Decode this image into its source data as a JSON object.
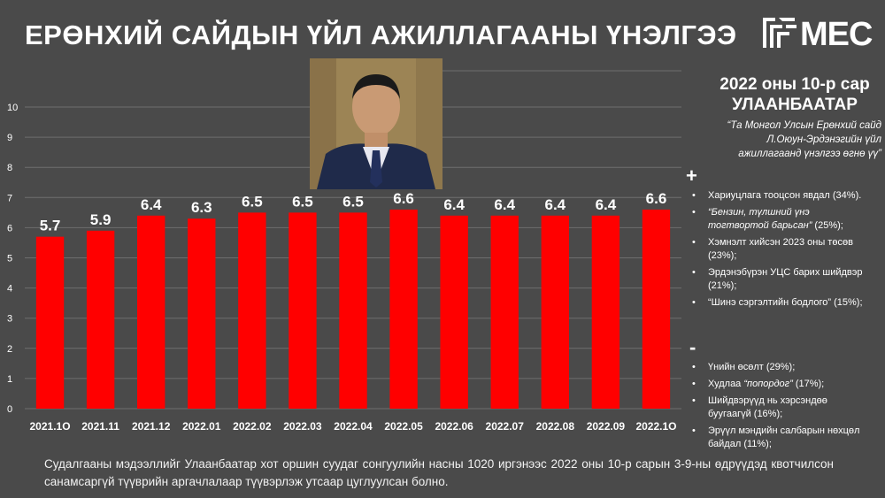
{
  "title": "ЕРӨНХИЙ САЙДЫН ҮЙЛ АЖИЛЛАГААНЫ ҮНЭЛГЭЭ",
  "logo": {
    "text": "MEC"
  },
  "survey": {
    "date_line": "2022 оны 10-р сар",
    "city": "УЛААНБААТАР",
    "question": "“Та Монгол Улсын Ерөнхий сайд Л.Оюун-Эрдэнэгийн үйл ажиллагаанд үнэлгээ өгнө үү”"
  },
  "positive": {
    "sign": "+",
    "items": [
      {
        "pre": "Хариуцлага тооцсон явдал (34%).",
        "em": "",
        "post": ""
      },
      {
        "pre": "",
        "em": "“Бензин, түлшний үнэ тогтвортой барьсан”",
        "post": " (25%);"
      },
      {
        "pre": "Хэмнэлт хийсэн 2023 оны төсөв (23%);",
        "em": "",
        "post": ""
      },
      {
        "pre": "Эрдэнэбүрэн УЦС барих шийдвэр (21%);",
        "em": "",
        "post": ""
      },
      {
        "pre": "“Шинэ сэргэлтийн бодлого” (15%);",
        "em": "",
        "post": ""
      }
    ]
  },
  "negative": {
    "sign": "-",
    "items": [
      {
        "pre": "Үнийн өсөлт (29%);",
        "em": "",
        "post": ""
      },
      {
        "pre": "Худлаа ",
        "em": "“попордог”",
        "post": " (17%);"
      },
      {
        "pre": "Шийдвэрүүд нь хэрсэндөө буугаагүй (16%);",
        "em": "",
        "post": ""
      },
      {
        "pre": "Эрүүл мэндийн салбарын нөхцөл байдал (11%);",
        "em": "",
        "post": ""
      }
    ]
  },
  "footnote": "Судалгааны мэдээллийг Улаанбаатар хот оршин суудаг сонгуулийн насны 1020 иргэнээс 2022 оны 10-р сарын 3-9-ны өдрүүдэд квотчилсон санамсаргүй түүврийн аргачлалаар түүвэрлэж утсаар цуглуулсан болно.",
  "colors": {
    "background": "#4a4a4a",
    "bar": "#ff0000",
    "text": "#ffffff",
    "grid": "#6e6e6e"
  },
  "chart_data": {
    "type": "bar",
    "title": "",
    "xlabel": "",
    "ylabel": "",
    "categories": [
      "2021.1O",
      "2021.11",
      "2021.12",
      "2022.01",
      "2022.02",
      "2022.03",
      "2022.04",
      "2022.05",
      "2022.06",
      "2022.07",
      "2022.08",
      "2022.09",
      "2022.1O"
    ],
    "values": [
      5.7,
      5.9,
      6.4,
      6.3,
      6.5,
      6.5,
      6.5,
      6.6,
      6.4,
      6.4,
      6.4,
      6.4,
      6.6
    ],
    "value_labels": [
      "5.7",
      "5.9",
      "6.4",
      "6.3",
      "6.5",
      "6.5",
      "6.5",
      "6.6",
      "6.4",
      "6.4",
      "6.4",
      "6.4",
      "6.6"
    ],
    "ylim": [
      0,
      10
    ],
    "yticks": [
      "0",
      "1",
      "2",
      "3",
      "4",
      "5",
      "6",
      "7",
      "8",
      "9",
      "10"
    ],
    "grid": true,
    "legend": "none"
  }
}
